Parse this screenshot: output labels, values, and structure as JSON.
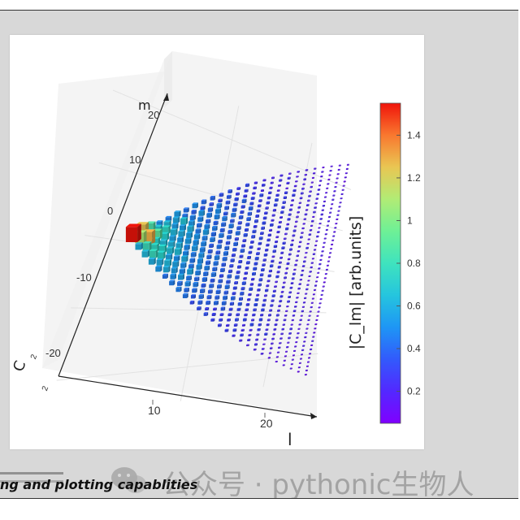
{
  "caption": "ng and plotting capablities",
  "watermark": {
    "text": "公众号 · pythonic生物人",
    "icon": "wechat-icon"
  },
  "chart_data": {
    "type": "bar3d",
    "title": "",
    "axes": {
      "x": {
        "label": "l",
        "ticks": [
          10,
          20
        ],
        "range": [
          0,
          25
        ]
      },
      "y": {
        "label": "m",
        "ticks": [
          -20,
          -10,
          0,
          10,
          20
        ],
        "range": [
          -25,
          25
        ]
      },
      "z": {
        "label": "C",
        "ticks": [
          2,
          2
        ]
      }
    },
    "colorbar": {
      "label": "|C_lm| [arb.units]",
      "ticks": [
        0.2,
        0.4,
        0.6,
        0.8,
        1,
        1.2,
        1.4
      ],
      "range": [
        0.05,
        1.55
      ],
      "colormap": "rainbow"
    },
    "highlight_points": [
      {
        "l": 0,
        "m": 0,
        "value": 1.55
      },
      {
        "l": 1,
        "m": 0,
        "value": 1.1
      },
      {
        "l": 1,
        "m": 1,
        "value": 1.25
      },
      {
        "l": 2,
        "m": 0,
        "value": 1.3
      },
      {
        "l": 2,
        "m": 2,
        "value": 0.85
      },
      {
        "l": 3,
        "m": 1,
        "value": 0.9
      }
    ],
    "description_grid": "triangular grid of bars for l = 0..25, m = -l..l, values decreasing with l"
  }
}
